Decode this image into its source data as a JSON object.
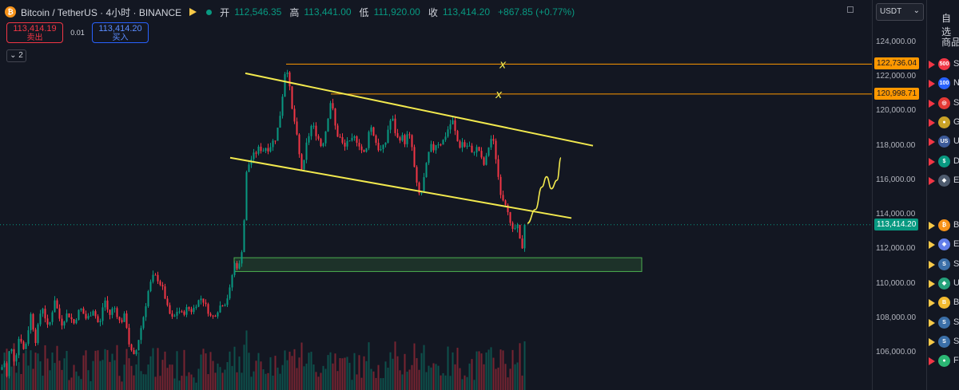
{
  "header": {
    "symbol_title": "Bitcoin / TetherUS · 4小时 · BINANCE",
    "ohlc": [
      {
        "key": "开",
        "value": "112,546.35"
      },
      {
        "key": "高",
        "value": "113,441.00"
      },
      {
        "key": "低",
        "value": "111,920.00"
      },
      {
        "key": "收",
        "value": "113,414.20"
      }
    ],
    "change": "+867.85 (+0.77%)"
  },
  "trade": {
    "sell_price": "113,414.19",
    "sell_label": "卖出",
    "spread": "0.01",
    "buy_price": "113,414.20",
    "buy_label": "买入"
  },
  "indicator_toggle": "⌄ 2",
  "currency_select": "USDT",
  "price_axis": {
    "ticks": [
      "124,000.00",
      "122,000.00",
      "120,000.00",
      "118,000.00",
      "116,000.00",
      "114,000.00",
      "112,000.00",
      "110,000.00",
      "108,000.00",
      "106,000.00"
    ],
    "tag_alert_1": "122,736.04",
    "tag_alert_2": "120,998.71",
    "tag_last": "113,414.20"
  },
  "watchlist": {
    "title": "自选",
    "subheader": "商品",
    "rows": [
      {
        "icon_label": "500",
        "icon_color": "#f23645",
        "flag": "red",
        "text": "S"
      },
      {
        "icon_label": "100",
        "icon_color": "#2962ff",
        "flag": "red",
        "text": "N"
      },
      {
        "icon_label": "◎",
        "icon_color": "#e53935",
        "flag": "red",
        "text": "S"
      },
      {
        "icon_label": "●",
        "icon_color": "#c9a227",
        "flag": "red",
        "text": "G"
      },
      {
        "icon_label": "US",
        "icon_color": "#3c5a99",
        "flag": "red",
        "text": "U"
      },
      {
        "icon_label": "$",
        "icon_color": "#089981",
        "flag": "red",
        "text": "D"
      },
      {
        "icon_label": "◆",
        "icon_color": "#4e5b6e",
        "flag": "red",
        "text": "E"
      }
    ],
    "rows2": [
      {
        "icon_label": "₿",
        "icon_color": "#f7931a",
        "flag": "yel",
        "text": "B"
      },
      {
        "icon_label": "◈",
        "icon_color": "#627eea",
        "flag": "yel",
        "text": "E"
      },
      {
        "icon_label": "S",
        "icon_color": "#3b6fa8",
        "flag": "yel",
        "text": "S"
      },
      {
        "icon_label": "◆",
        "icon_color": "#26a17b",
        "flag": "yel",
        "text": "U"
      },
      {
        "icon_label": "B",
        "icon_color": "#f3ba2f",
        "flag": "yel",
        "text": "B"
      },
      {
        "icon_label": "S",
        "icon_color": "#3b6fa8",
        "flag": "yel",
        "text": "S"
      },
      {
        "icon_label": "S",
        "icon_color": "#3b6fa8",
        "flag": "yel",
        "text": "S"
      },
      {
        "icon_label": "●",
        "icon_color": "#2bb673",
        "flag": "red",
        "text": "F"
      }
    ]
  },
  "colors": {
    "background": "#131722",
    "up": "#089981",
    "down": "#f23645",
    "channel": "#f2e94e",
    "alert_line": "#ff9800",
    "support_zone": "#4caf50"
  },
  "annotations": {
    "cross_mark": "x"
  },
  "chart_data": {
    "type": "candlestick",
    "symbol": "BTCUSDT",
    "interval": "4小时",
    "ylim": [
      104900,
      125200
    ],
    "grid": false,
    "price_path": [
      [
        0,
        105000
      ],
      [
        5,
        105400
      ],
      [
        8,
        104600
      ],
      [
        12,
        106500
      ],
      [
        18,
        105400
      ],
      [
        24,
        107100
      ],
      [
        30,
        106000
      ],
      [
        38,
        108200
      ],
      [
        44,
        106700
      ],
      [
        52,
        108800
      ],
      [
        60,
        107300
      ],
      [
        68,
        109100
      ],
      [
        76,
        107600
      ],
      [
        84,
        108300
      ],
      [
        92,
        107700
      ],
      [
        100,
        108600
      ],
      [
        108,
        107900
      ],
      [
        116,
        108500
      ],
      [
        124,
        107500
      ],
      [
        130,
        109200
      ],
      [
        136,
        108100
      ],
      [
        142,
        108700
      ],
      [
        150,
        107700
      ],
      [
        156,
        108200
      ],
      [
        162,
        106200
      ],
      [
        168,
        105700
      ],
      [
        174,
        107000
      ],
      [
        180,
        108300
      ],
      [
        186,
        109800
      ],
      [
        192,
        110500
      ],
      [
        198,
        110200
      ],
      [
        204,
        109600
      ],
      [
        210,
        108400
      ],
      [
        216,
        107900
      ],
      [
        222,
        108500
      ],
      [
        228,
        108200
      ],
      [
        234,
        108600
      ],
      [
        240,
        108400
      ],
      [
        246,
        108900
      ],
      [
        252,
        109200
      ],
      [
        258,
        108600
      ],
      [
        264,
        108000
      ],
      [
        270,
        108300
      ],
      [
        276,
        108800
      ],
      [
        282,
        108900
      ],
      [
        288,
        109800
      ],
      [
        292,
        111200
      ],
      [
        296,
        111000
      ],
      [
        300,
        111100
      ],
      [
        304,
        112800
      ],
      [
        308,
        116400
      ],
      [
        312,
        117100
      ],
      [
        316,
        117400
      ],
      [
        320,
        117600
      ],
      [
        324,
        117900
      ],
      [
        328,
        117700
      ],
      [
        332,
        117900
      ],
      [
        336,
        117800
      ],
      [
        340,
        118200
      ],
      [
        344,
        118400
      ],
      [
        348,
        119200
      ],
      [
        352,
        120400
      ],
      [
        355,
        122000
      ],
      [
        358,
        122700
      ],
      [
        361,
        121800
      ],
      [
        364,
        120300
      ],
      [
        368,
        119400
      ],
      [
        372,
        118200
      ],
      [
        376,
        116700
      ],
      [
        379,
        116600
      ],
      [
        382,
        117900
      ],
      [
        386,
        118600
      ],
      [
        390,
        119300
      ],
      [
        394,
        118800
      ],
      [
        398,
        118400
      ],
      [
        402,
        117900
      ],
      [
        406,
        118600
      ],
      [
        410,
        119700
      ],
      [
        414,
        120800
      ],
      [
        418,
        119300
      ],
      [
        422,
        118600
      ],
      [
        426,
        118400
      ],
      [
        430,
        117800
      ],
      [
        434,
        118300
      ],
      [
        438,
        118100
      ],
      [
        442,
        118500
      ],
      [
        446,
        118300
      ],
      [
        450,
        118000
      ],
      [
        454,
        117500
      ],
      [
        458,
        117800
      ],
      [
        462,
        119300
      ],
      [
        466,
        118800
      ],
      [
        470,
        118200
      ],
      [
        474,
        117700
      ],
      [
        478,
        117800
      ],
      [
        482,
        118200
      ],
      [
        486,
        119200
      ],
      [
        490,
        119700
      ],
      [
        494,
        118800
      ],
      [
        498,
        118300
      ],
      [
        502,
        118600
      ],
      [
        506,
        118200
      ],
      [
        510,
        118700
      ],
      [
        514,
        118300
      ],
      [
        518,
        116700
      ],
      [
        522,
        115400
      ],
      [
        526,
        115000
      ],
      [
        530,
        116100
      ],
      [
        534,
        117100
      ],
      [
        538,
        118000
      ],
      [
        542,
        117800
      ],
      [
        546,
        118200
      ],
      [
        550,
        118100
      ],
      [
        554,
        118300
      ],
      [
        558,
        118700
      ],
      [
        562,
        119200
      ],
      [
        566,
        119400
      ],
      [
        570,
        118600
      ],
      [
        574,
        117900
      ],
      [
        578,
        118200
      ],
      [
        582,
        117900
      ],
      [
        586,
        118100
      ],
      [
        590,
        117500
      ],
      [
        594,
        117800
      ],
      [
        598,
        117900
      ],
      [
        602,
        117200
      ],
      [
        606,
        116800
      ],
      [
        610,
        117800
      ],
      [
        614,
        118400
      ],
      [
        618,
        118100
      ],
      [
        622,
        116500
      ],
      [
        626,
        115300
      ],
      [
        630,
        114800
      ],
      [
        634,
        114600
      ],
      [
        638,
        113400
      ],
      [
        642,
        112900
      ],
      [
        646,
        113500
      ],
      [
        650,
        112500
      ],
      [
        654,
        112000
      ],
      [
        658,
        113414
      ]
    ],
    "projection_path": [
      [
        660,
        113500
      ],
      [
        670,
        114300
      ],
      [
        678,
        115600
      ],
      [
        684,
        116200
      ],
      [
        690,
        115500
      ],
      [
        697,
        116000
      ],
      [
        702,
        117300
      ]
    ],
    "channel_upper": [
      [
        307,
        122200
      ],
      [
        742,
        118000
      ]
    ],
    "channel_lower": [
      [
        288,
        117300
      ],
      [
        715,
        113800
      ]
    ],
    "alert_lines": [
      {
        "price": 122736.04,
        "from": 358
      },
      {
        "price": 120998.71,
        "from": 414
      }
    ],
    "support_zone": {
      "x_from": 293,
      "x_to": 803,
      "y_top": 111500,
      "y_bottom": 110700
    },
    "last_price": 113414.2
  }
}
